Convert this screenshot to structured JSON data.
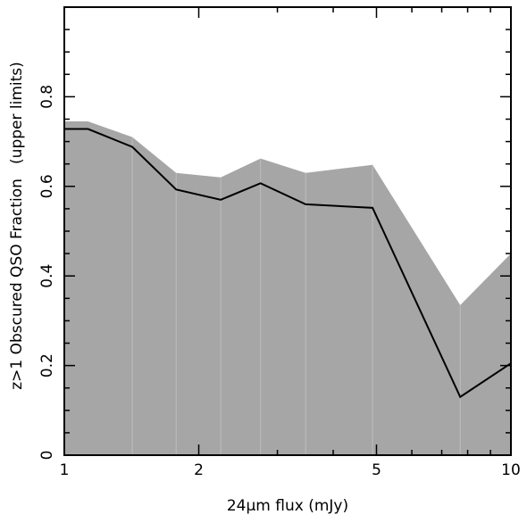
{
  "chart_data": {
    "type": "area",
    "title": "",
    "xlabel": "24μm flux (mJy)",
    "ylabel": "z>1 Obscured QSO Fraction   (upper limits)",
    "x_scale": "log",
    "xlim": [
      1,
      10
    ],
    "ylim": [
      0,
      1
    ],
    "x_ticks": [
      {
        "value": 1,
        "label": "1"
      },
      {
        "value": 2,
        "label": "2"
      },
      {
        "value": 5,
        "label": "5"
      },
      {
        "value": 10,
        "label": "10"
      }
    ],
    "y_ticks": [
      {
        "value": 0,
        "label": "0"
      },
      {
        "value": 0.2,
        "label": "0.2"
      },
      {
        "value": 0.4,
        "label": "0.4"
      },
      {
        "value": 0.6,
        "label": "0.6"
      },
      {
        "value": 0.8,
        "label": "0.8"
      }
    ],
    "series": [
      {
        "kind": "band",
        "color": "#a6a6a6",
        "x": [
          1.0,
          1.13,
          1.42,
          1.78,
          2.24,
          2.75,
          3.47,
          4.9,
          7.7,
          10.0
        ],
        "y": [
          0.745,
          0.745,
          0.71,
          0.63,
          0.62,
          0.662,
          0.63,
          0.648,
          0.335,
          0.45
        ]
      },
      {
        "kind": "line",
        "color": "#000000",
        "x": [
          1.0,
          1.13,
          1.42,
          1.78,
          2.24,
          2.75,
          3.47,
          4.9,
          7.7,
          10.0
        ],
        "y": [
          0.728,
          0.728,
          0.688,
          0.593,
          0.57,
          0.607,
          0.56,
          0.552,
          0.13,
          0.205
        ]
      }
    ],
    "bin_edges": [
      1.42,
      1.78,
      2.24,
      2.75,
      3.47,
      4.9,
      7.7
    ],
    "grid": false,
    "legend": "none"
  }
}
